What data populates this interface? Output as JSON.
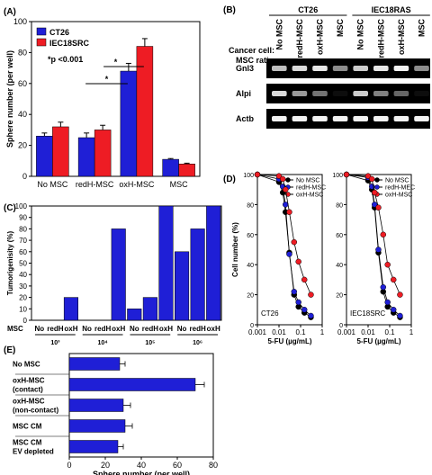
{
  "colors": {
    "ct26": "#1f1fd6",
    "iec": "#ee1c24",
    "gel_bg": "#000000",
    "band": "#ffffff"
  },
  "panel_labels": {
    "a": "(A)",
    "b": "(B)",
    "c": "(C)",
    "d": "(D)",
    "e": "(E)"
  },
  "chart_data": [
    {
      "id": "A",
      "type": "bar",
      "ylabel": "Sphere number (per well)",
      "ylim": [
        0,
        100
      ],
      "yticks": [
        0,
        20,
        40,
        60,
        80,
        100
      ],
      "categories": [
        "No MSC",
        "redH-MSC",
        "oxH-MSC",
        "MSC"
      ],
      "series": [
        {
          "name": "CT26",
          "values": [
            26,
            25,
            68,
            11
          ],
          "errors": [
            2,
            3,
            5,
            0.5
          ]
        },
        {
          "name": "IEC18SRC",
          "values": [
            32,
            30,
            84,
            8
          ],
          "errors": [
            3,
            3,
            5,
            0.5
          ]
        }
      ],
      "annotation": "*p <0.001",
      "sig_marks": [
        "*",
        "*"
      ],
      "legend": "top-left"
    },
    {
      "id": "B",
      "type": "table",
      "row_header_line1": "Cancer cell:",
      "row_header_line2": "MSC ratio",
      "groups": [
        "CT26",
        "IEC18RAS"
      ],
      "lanes": [
        "No MSC",
        "redH-MSC",
        "oxH-MSC",
        "MSC",
        "No MSC",
        "redH-MSC",
        "oxH-MSC",
        "MSC"
      ],
      "genes": [
        "Gnl3",
        "Alpi",
        "Actb"
      ],
      "intensity": [
        [
          0.75,
          0.85,
          0.9,
          0.55,
          0.8,
          0.9,
          0.95,
          0.55
        ],
        [
          0.85,
          0.6,
          0.45,
          0.05,
          0.8,
          0.5,
          0.4,
          0.05
        ],
        [
          0.95,
          0.95,
          0.95,
          0.95,
          0.95,
          0.95,
          0.95,
          0.95
        ]
      ]
    },
    {
      "id": "C",
      "type": "bar",
      "ylabel": "Tumorigenisity (%)",
      "ylim": [
        0,
        100
      ],
      "yticks": [
        0,
        10,
        20,
        30,
        40,
        50,
        60,
        70,
        80,
        90,
        100
      ],
      "row_label": "MSC",
      "categories": [
        "No",
        "redH",
        "oxH",
        "No",
        "redH",
        "oxH",
        "No",
        "redH",
        "oxH",
        "No",
        "redH",
        "oxH"
      ],
      "groups": [
        "10³",
        "10⁴",
        "10⁵",
        "10⁶"
      ],
      "values": [
        0,
        0,
        20,
        0,
        0,
        80,
        10,
        20,
        100,
        60,
        80,
        100
      ]
    },
    {
      "id": "D",
      "type": "line",
      "ylabel": "Cell number (%)",
      "xlabel": "5-FU (µg/mL)",
      "x_scale": "log",
      "xlim": [
        0.001,
        1
      ],
      "ylim": [
        0,
        100
      ],
      "yticks": [
        0,
        20,
        40,
        60,
        80,
        100
      ],
      "xtick_labels": [
        "0.001",
        "0.01",
        "0.1",
        "1"
      ],
      "x": [
        0.001,
        0.01,
        0.015,
        0.02,
        0.03,
        0.05,
        0.08,
        0.15,
        0.3
      ],
      "subplots": [
        {
          "label": "CT26",
          "legend": [
            "No MSC",
            "redH-MSC",
            "oxH-MSC"
          ],
          "series": [
            {
              "name": "No MSC",
              "values": [
                100,
                95,
                88,
                75,
                48,
                20,
                12,
                8,
                5
              ]
            },
            {
              "name": "redH-MSC",
              "values": [
                100,
                97,
                92,
                80,
                47,
                22,
                15,
                10,
                6
              ]
            },
            {
              "name": "oxH-MSC",
              "values": [
                100,
                99,
                97,
                90,
                75,
                55,
                42,
                30,
                20
              ]
            }
          ]
        },
        {
          "label": "IEC18SRC",
          "legend": [
            "No MSC",
            "redH-MEC",
            "oxH-MSC"
          ],
          "series": [
            {
              "name": "No MSC",
              "values": [
                100,
                96,
                90,
                78,
                48,
                22,
                12,
                8,
                5
              ]
            },
            {
              "name": "redH-MEC",
              "values": [
                100,
                98,
                92,
                80,
                50,
                25,
                15,
                10,
                6
              ]
            },
            {
              "name": "oxH-MSC",
              "values": [
                100,
                99,
                97,
                88,
                78,
                60,
                40,
                30,
                20
              ]
            }
          ]
        }
      ],
      "marker_colors": [
        "#000000",
        "#1f1fd6",
        "#ee1c24"
      ]
    },
    {
      "id": "E",
      "type": "bar",
      "orientation": "horizontal",
      "xlabel": "Sphere number (per well)",
      "xlim": [
        0,
        80
      ],
      "xticks": [
        0,
        20,
        40,
        60,
        80
      ],
      "categories": [
        [
          "No MSC"
        ],
        [
          "oxH-MSC",
          "(contact)"
        ],
        [
          "oxH-MSC",
          "(non-contact)"
        ],
        [
          "MSC CM"
        ],
        [
          "MSC CM",
          "EV depleted"
        ]
      ],
      "values": [
        28,
        70,
        30,
        31,
        27
      ],
      "errors": [
        3,
        5,
        4,
        4,
        3
      ]
    }
  ]
}
